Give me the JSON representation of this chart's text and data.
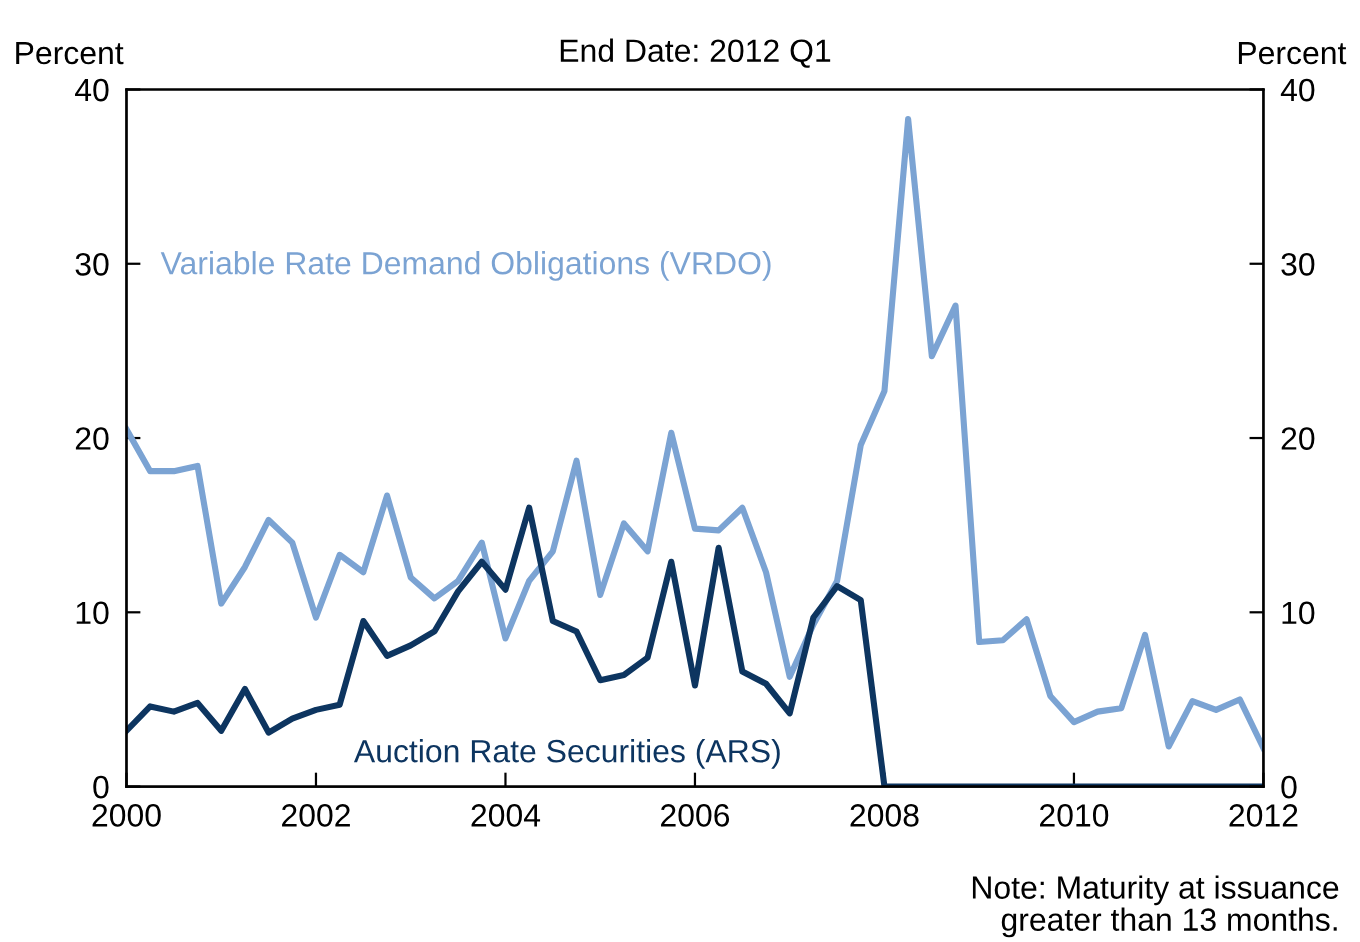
{
  "chart_data": {
    "type": "line",
    "title": "End Date: 2012 Q1",
    "ylabel": "Percent",
    "y2label": "Percent",
    "x": [
      2000,
      2000.25,
      2000.5,
      2000.75,
      2001,
      2001.25,
      2001.5,
      2001.75,
      2002,
      2002.25,
      2002.5,
      2002.75,
      2003,
      2003.25,
      2003.5,
      2003.75,
      2004,
      2004.25,
      2004.5,
      2004.75,
      2005,
      2005.25,
      2005.5,
      2005.75,
      2006,
      2006.25,
      2006.5,
      2006.75,
      2007,
      2007.25,
      2007.5,
      2007.75,
      2008,
      2008.25,
      2008.5,
      2008.75,
      2009,
      2009.25,
      2009.5,
      2009.75,
      2010,
      2010.25,
      2010.5,
      2010.75,
      2011,
      2011.25,
      2011.5,
      2011.75,
      2012
    ],
    "series": [
      {
        "name": "Variable Rate Demand Obligations (VRDO)",
        "color": "#7ba3d3",
        "values": [
          20.5,
          18.1,
          18.1,
          18.4,
          10.5,
          12.6,
          15.3,
          14.0,
          9.7,
          13.3,
          12.3,
          16.7,
          12.0,
          10.8,
          11.8,
          14.0,
          8.5,
          11.8,
          13.5,
          18.7,
          11.0,
          15.1,
          13.5,
          20.3,
          14.8,
          14.7,
          16.0,
          12.3,
          6.3,
          9.3,
          11.8,
          19.6,
          22.7,
          38.3,
          24.7,
          27.6,
          8.3,
          8.4,
          9.6,
          5.2,
          3.7,
          4.3,
          4.5,
          8.7,
          2.3,
          4.9,
          4.4,
          5.0,
          2.2
        ]
      },
      {
        "name": "Auction Rate Securities (ARS)",
        "color": "#0d3560",
        "values": [
          3.2,
          4.6,
          4.3,
          4.8,
          3.2,
          5.6,
          3.1,
          3.9,
          4.4,
          4.7,
          9.5,
          7.5,
          8.1,
          8.9,
          11.2,
          12.9,
          11.3,
          16.0,
          9.5,
          8.9,
          6.1,
          6.4,
          7.4,
          12.9,
          5.8,
          13.7,
          6.6,
          5.9,
          4.2,
          9.7,
          11.5,
          10.7,
          0,
          0,
          0,
          0,
          0,
          0,
          0,
          0,
          0,
          0,
          0,
          0,
          0,
          0,
          0,
          0,
          0
        ]
      }
    ],
    "xlim": [
      2000,
      2012
    ],
    "xticks": [
      2000,
      2002,
      2004,
      2006,
      2008,
      2010,
      2012
    ],
    "ylim": [
      0,
      40
    ],
    "yticks": [
      0,
      10,
      20,
      30,
      40
    ],
    "y2lim": [
      0,
      40
    ],
    "y2ticks": [
      0,
      10,
      20,
      30,
      40
    ],
    "grid": false,
    "legend": false,
    "marker": "none",
    "line_style": "solid",
    "annotations": [
      "Note: Maturity at issuance\ngreater than 13 months."
    ]
  }
}
